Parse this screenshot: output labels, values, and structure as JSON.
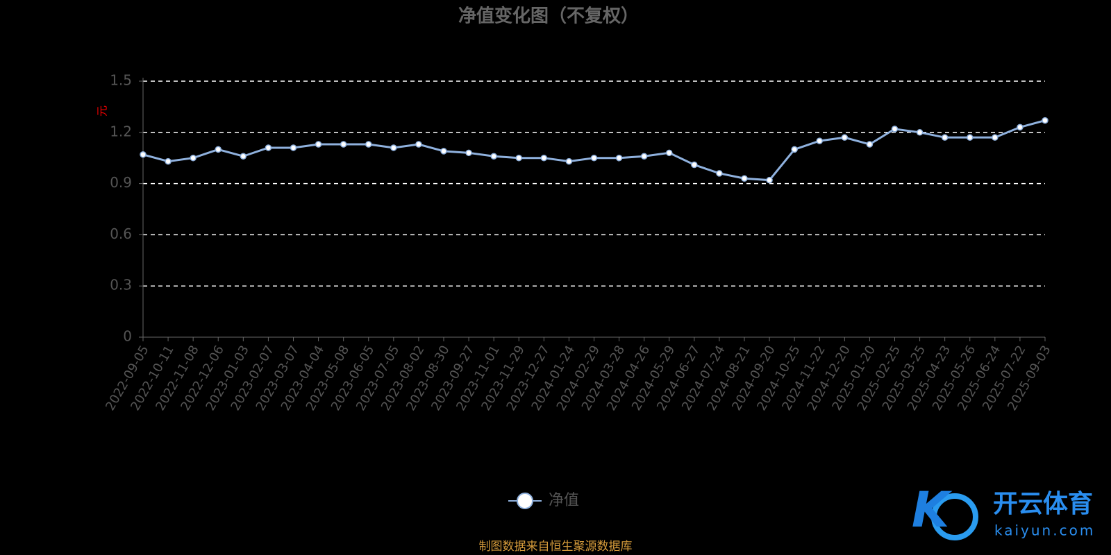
{
  "chart_data": {
    "type": "line",
    "title": "净值变化图（不复权）",
    "y_unit": "元",
    "categories": [
      "2022-09-05",
      "2022-10-11",
      "2022-11-08",
      "2022-12-06",
      "2023-01-03",
      "2023-02-07",
      "2023-03-07",
      "2023-04-04",
      "2023-05-08",
      "2023-06-05",
      "2023-07-05",
      "2023-08-02",
      "2023-08-30",
      "2023-09-27",
      "2023-11-01",
      "2023-11-29",
      "2023-12-27",
      "2024-01-24",
      "2024-02-29",
      "2024-03-28",
      "2024-04-26",
      "2024-05-29",
      "2024-06-27",
      "2024-07-24",
      "2024-08-21",
      "2024-09-20",
      "2024-10-25",
      "2024-11-22",
      "2024-12-20",
      "2025-01-20",
      "2025-02-25",
      "2025-03-25",
      "2025-04-23",
      "2025-05-26",
      "2025-06-24",
      "2025-07-22",
      "2025-09-03"
    ],
    "series": [
      {
        "name": "净值",
        "color": "#8fb1de",
        "values": [
          1.07,
          1.03,
          1.05,
          1.1,
          1.06,
          1.11,
          1.11,
          1.13,
          1.13,
          1.13,
          1.11,
          1.13,
          1.09,
          1.08,
          1.06,
          1.05,
          1.05,
          1.03,
          1.05,
          1.05,
          1.06,
          1.08,
          1.01,
          0.96,
          0.93,
          0.92,
          1.1,
          1.15,
          1.17,
          1.13,
          1.22,
          1.2,
          1.17,
          1.17,
          1.17,
          1.23,
          1.27
        ]
      }
    ],
    "ylim": [
      0,
      1.5
    ],
    "yticks": [
      0,
      0.3,
      0.6,
      0.9,
      1.2,
      1.5
    ],
    "grid": true,
    "source": "制图数据来自恒生聚源数据库"
  },
  "watermark": {
    "brand": "开云体育",
    "url": "kaiyun.com"
  }
}
